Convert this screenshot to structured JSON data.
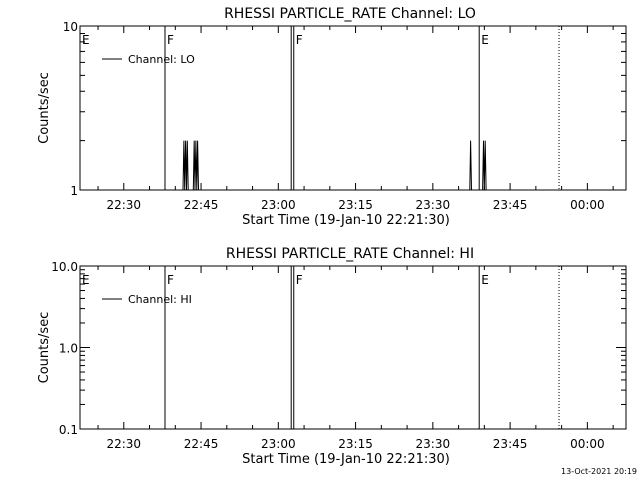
{
  "footer": {
    "timestamp": "13-Oct-2021 20:19"
  },
  "chart_data": [
    {
      "type": "line",
      "title": "RHESSI PARTICLE_RATE Channel: LO",
      "xlabel": "Start Time (19-Jan-10 22:21:30)",
      "ylabel": "Counts/sec",
      "x_axis_kind": "time",
      "x_range": [
        "22:21:30",
        "00:07:30"
      ],
      "x_ticks": [
        "22:30",
        "22:45",
        "23:00",
        "23:15",
        "23:30",
        "23:45",
        "00:00"
      ],
      "y_scale": "log",
      "ylim": [
        1,
        10
      ],
      "y_ticks": [
        "1",
        "10"
      ],
      "legend": {
        "label": "Channel: LO",
        "position": "top-left"
      },
      "markers": [
        {
          "time": "22:21:30",
          "label": "E",
          "style": "solid"
        },
        {
          "time": "22:38:00",
          "label": "F",
          "style": "solid"
        },
        {
          "time": "23:02:30",
          "label": "",
          "style": "solid"
        },
        {
          "time": "23:03:00",
          "label": "F",
          "style": "solid"
        },
        {
          "time": "23:39:00",
          "label": "E",
          "style": "solid"
        },
        {
          "time": "23:54:30",
          "label": "",
          "style": "dotted"
        }
      ],
      "series": [
        {
          "values": [
            [
              "22:41:30",
              1
            ],
            [
              "22:41:40",
              2
            ],
            [
              "22:41:50",
              1
            ],
            [
              "22:42:00",
              2
            ],
            [
              "22:42:10",
              1
            ],
            [
              "22:42:20",
              2
            ],
            [
              "22:42:30",
              1
            ],
            [
              "22:43:30",
              1
            ],
            [
              "22:43:40",
              2
            ],
            [
              "22:43:50",
              1
            ],
            [
              "22:44:00",
              2
            ],
            [
              "22:44:10",
              1
            ],
            [
              "22:44:20",
              2
            ],
            [
              "22:44:30",
              1
            ],
            [
              "23:37:10",
              1
            ],
            [
              "23:37:20",
              2
            ],
            [
              "23:37:30",
              1
            ],
            [
              "23:39:40",
              1
            ],
            [
              "23:39:50",
              2
            ],
            [
              "23:40:00",
              1
            ],
            [
              "23:40:10",
              2
            ],
            [
              "23:40:20",
              1
            ]
          ]
        }
      ]
    },
    {
      "type": "line",
      "title": "RHESSI PARTICLE_RATE Channel: HI",
      "xlabel": "Start Time (19-Jan-10 22:21:30)",
      "ylabel": "Counts/sec",
      "x_axis_kind": "time",
      "x_range": [
        "22:21:30",
        "00:07:30"
      ],
      "x_ticks": [
        "22:30",
        "22:45",
        "23:00",
        "23:15",
        "23:30",
        "23:45",
        "00:00"
      ],
      "y_scale": "log",
      "ylim": [
        0.1,
        10
      ],
      "y_ticks": [
        "0.1",
        "1.0",
        "10.0"
      ],
      "legend": {
        "label": "Channel: HI",
        "position": "top-left"
      },
      "markers": [
        {
          "time": "22:21:30",
          "label": "E",
          "style": "solid"
        },
        {
          "time": "22:38:00",
          "label": "F",
          "style": "solid"
        },
        {
          "time": "23:02:30",
          "label": "",
          "style": "solid"
        },
        {
          "time": "23:03:00",
          "label": "F",
          "style": "solid"
        },
        {
          "time": "23:39:00",
          "label": "E",
          "style": "solid"
        },
        {
          "time": "23:54:30",
          "label": "",
          "style": "dotted"
        }
      ],
      "series": [
        {
          "values": []
        }
      ]
    }
  ]
}
